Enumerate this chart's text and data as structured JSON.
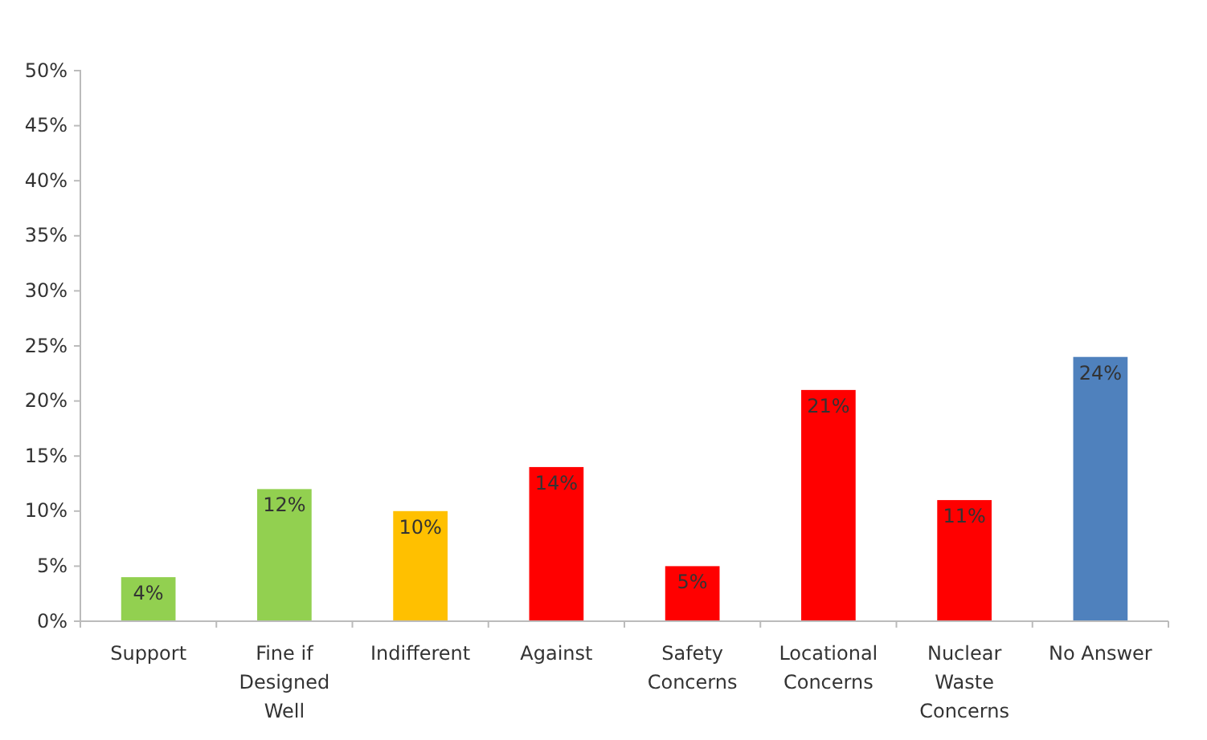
{
  "chart_data": {
    "type": "bar",
    "categories": [
      "Support",
      "Fine if Designed Well",
      "Indifferent",
      "Against",
      "Safety Concerns",
      "Locational Concerns",
      "Nuclear Waste Concerns",
      "No Answer"
    ],
    "values": [
      4,
      12,
      10,
      14,
      5,
      21,
      11,
      24
    ],
    "colors": [
      "#92d050",
      "#92d050",
      "#ffc000",
      "#ff0000",
      "#ff0000",
      "#ff0000",
      "#ff0000",
      "#4f81bd"
    ],
    "value_labels": [
      "4%",
      "12%",
      "10%",
      "14%",
      "5%",
      "21%",
      "11%",
      "24%"
    ],
    "ylim": [
      0,
      50
    ],
    "yticks": [
      {
        "value": 0,
        "label": "0%"
      },
      {
        "value": 5,
        "label": "5%"
      },
      {
        "value": 10,
        "label": "10%"
      },
      {
        "value": 15,
        "label": "15%"
      },
      {
        "value": 20,
        "label": "20%"
      },
      {
        "value": 25,
        "label": "25%"
      },
      {
        "value": 30,
        "label": "30%"
      },
      {
        "value": 35,
        "label": "35%"
      },
      {
        "value": 40,
        "label": "40%"
      },
      {
        "value": 45,
        "label": "45%"
      },
      {
        "value": 50,
        "label": "50%"
      }
    ],
    "grid": false
  }
}
